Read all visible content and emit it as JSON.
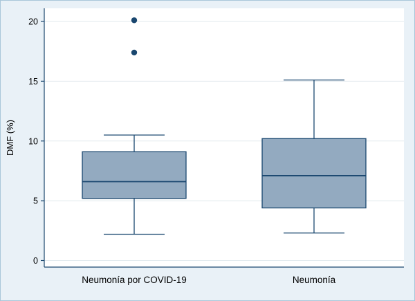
{
  "chart_data": {
    "type": "boxplot",
    "title": "",
    "xlabel": "",
    "ylabel": "DMF (%)",
    "ylim": [
      0,
      20
    ],
    "yticks": [
      0,
      5,
      10,
      15,
      20
    ],
    "grid": true,
    "legend": "none",
    "categories": [
      "Neumonía por COVID-19",
      "Neumonía"
    ],
    "boxes": [
      {
        "label": "Neumonía por COVID-19",
        "whisker_low": 2.2,
        "q1": 5.2,
        "median": 6.6,
        "q3": 9.1,
        "whisker_high": 10.5,
        "outliers": [
          17.4,
          20.1
        ]
      },
      {
        "label": "Neumonía",
        "whisker_low": 2.3,
        "q1": 4.4,
        "median": 7.1,
        "q3": 10.2,
        "whisker_high": 15.1,
        "outliers": []
      }
    ],
    "colors": {
      "background": "#e9f1f7",
      "border": "#a9c6d9",
      "plot_bg": "#ffffff",
      "grid": "#e2eaee",
      "axis": "#1a476f",
      "line": "#1a476f",
      "box_fill": "#93aac0",
      "text": "#000000"
    }
  }
}
